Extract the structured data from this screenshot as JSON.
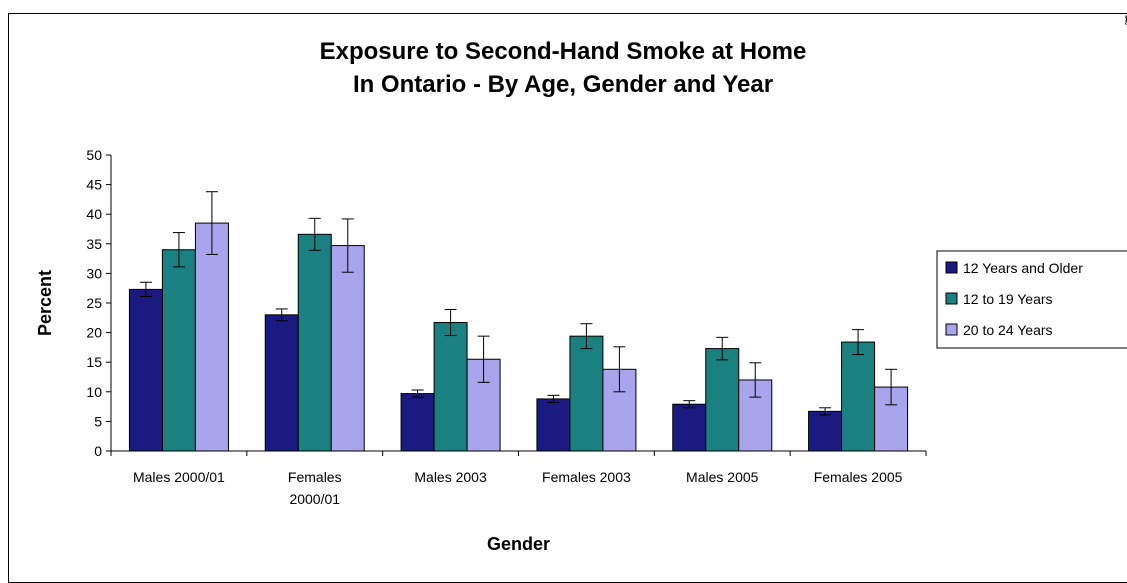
{
  "corner_text": "g",
  "chart_data": {
    "type": "bar",
    "title": [
      "Exposure to Second-Hand Smoke at Home",
      "In Ontario - By Age, Gender and Year"
    ],
    "xlabel": "Gender",
    "ylabel": "Percent",
    "ylim": [
      0,
      50
    ],
    "yticks": [
      "0",
      "5",
      "10",
      "15",
      "20",
      "25",
      "30",
      "35",
      "40",
      "45",
      "50"
    ],
    "categories": [
      [
        "Males 2000/01"
      ],
      [
        "Females",
        "2000/01"
      ],
      [
        "Males 2003"
      ],
      [
        "Females 2003"
      ],
      [
        "Males 2005"
      ],
      [
        "Females 2005"
      ]
    ],
    "series": [
      {
        "name": "12 Years and Older",
        "color": "#1a1a80",
        "values": [
          27.3,
          23.0,
          9.7,
          8.8,
          7.9,
          6.7
        ],
        "errors": [
          1.2,
          1.0,
          0.6,
          0.6,
          0.6,
          0.6
        ]
      },
      {
        "name": "12 to 19 Years",
        "color": "#1a8080",
        "values": [
          34.0,
          36.6,
          21.7,
          19.4,
          17.3,
          18.4
        ],
        "errors": [
          2.9,
          2.7,
          2.2,
          2.1,
          1.9,
          2.1
        ]
      },
      {
        "name": "20 to 24 Years",
        "color": "#a9a4ec",
        "values": [
          38.5,
          34.7,
          15.5,
          13.8,
          12.0,
          10.8
        ],
        "errors": [
          5.3,
          4.5,
          3.9,
          3.8,
          2.9,
          3.0
        ]
      }
    ],
    "grid": false,
    "legend": "right"
  }
}
